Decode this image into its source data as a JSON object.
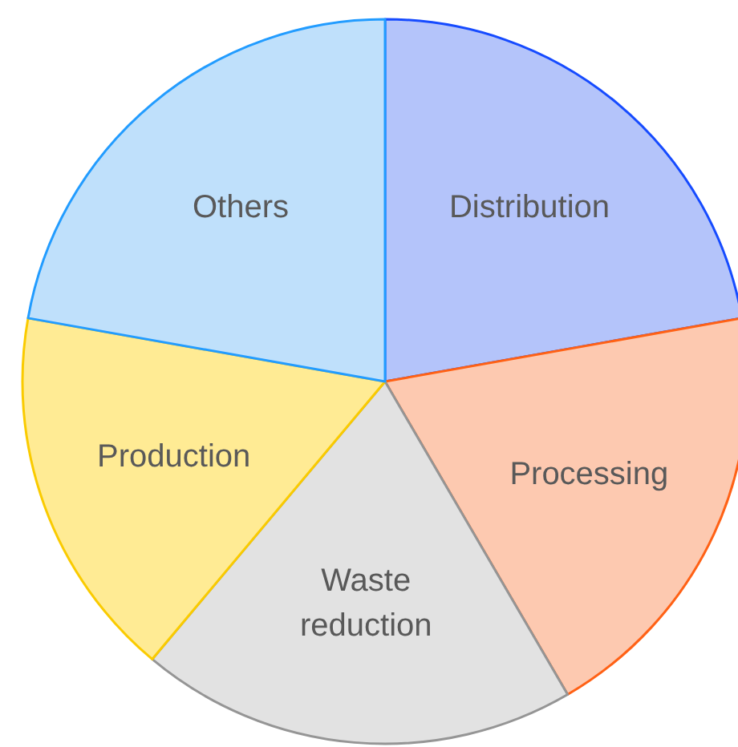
{
  "chart_data": {
    "type": "pie",
    "categories": [
      "Distribution",
      "Processing",
      "Waste reduction",
      "Production",
      "Others"
    ],
    "values": [
      22.2,
      19.4,
      19.5,
      16.7,
      22.2
    ],
    "colors": [
      "#b4c4fa",
      "#fdc9b0",
      "#e2e2e2",
      "#ffeb94",
      "#bfe0fb"
    ]
  }
}
